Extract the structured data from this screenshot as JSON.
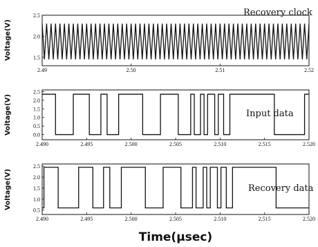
{
  "x_title": "Time(µsec)",
  "chart_data": [
    {
      "type": "line",
      "title": "Recovery clock",
      "ylabel": "Voltage(V)",
      "xlim": [
        2.49,
        2.52
      ],
      "ylim": [
        1.3,
        2.5
      ],
      "x_ticks": [
        "2.49",
        "2.50",
        "2.51",
        "2.52"
      ],
      "y_ticks": [
        "1.5",
        "2.0",
        "2.5"
      ],
      "series": [
        {
          "kind": "clock",
          "period": 0.0005,
          "low": 1.45,
          "high": 2.3
        }
      ]
    },
    {
      "type": "line",
      "title": "Input data",
      "ylabel": "Voltage(V)",
      "xlim": [
        2.49,
        2.52
      ],
      "ylim": [
        -0.3,
        2.6
      ],
      "x_ticks": [
        "2.490",
        "2.495",
        "2.500",
        "2.505",
        "2.510",
        "2.515",
        "2.520"
      ],
      "y_ticks": [
        "0.0",
        "0.5",
        "1.0",
        "1.5",
        "2.0",
        "2.5"
      ],
      "series": [
        {
          "kind": "digital",
          "low": 0.0,
          "high": 2.35,
          "initial": 2.35,
          "transitions": [
            2.4915,
            2.4935,
            2.4953,
            2.4966,
            2.4973,
            2.4986,
            2.5013,
            2.5033,
            2.5053,
            2.5067,
            2.5071,
            2.5078,
            2.5082,
            2.5086,
            2.5094,
            2.5098,
            2.5104,
            2.5111,
            2.5161,
            2.5195
          ]
        }
      ]
    },
    {
      "type": "line",
      "title": "Recovery data",
      "ylabel": "Voltage(V)",
      "xlim": [
        2.49,
        2.52
      ],
      "ylim": [
        0.3,
        2.6
      ],
      "x_ticks": [
        "2.490",
        "2.495",
        "2.500",
        "2.505",
        "2.510",
        "2.515",
        "2.520"
      ],
      "y_ticks": [
        "0.5",
        "1.0",
        "1.5",
        "2.0",
        "2.5"
      ],
      "series": [
        {
          "kind": "digital",
          "low": 0.6,
          "high": 2.45,
          "initial": 0.6,
          "transitions": [
            2.4902,
            2.4918,
            2.4941,
            2.4957,
            2.4969,
            2.4976,
            2.4989,
            2.5016,
            2.5036,
            2.5056,
            2.5069,
            2.5073,
            2.5081,
            2.5085,
            2.5089,
            2.5097,
            2.5101,
            2.5107,
            2.5114,
            2.5163
          ]
        }
      ]
    }
  ]
}
